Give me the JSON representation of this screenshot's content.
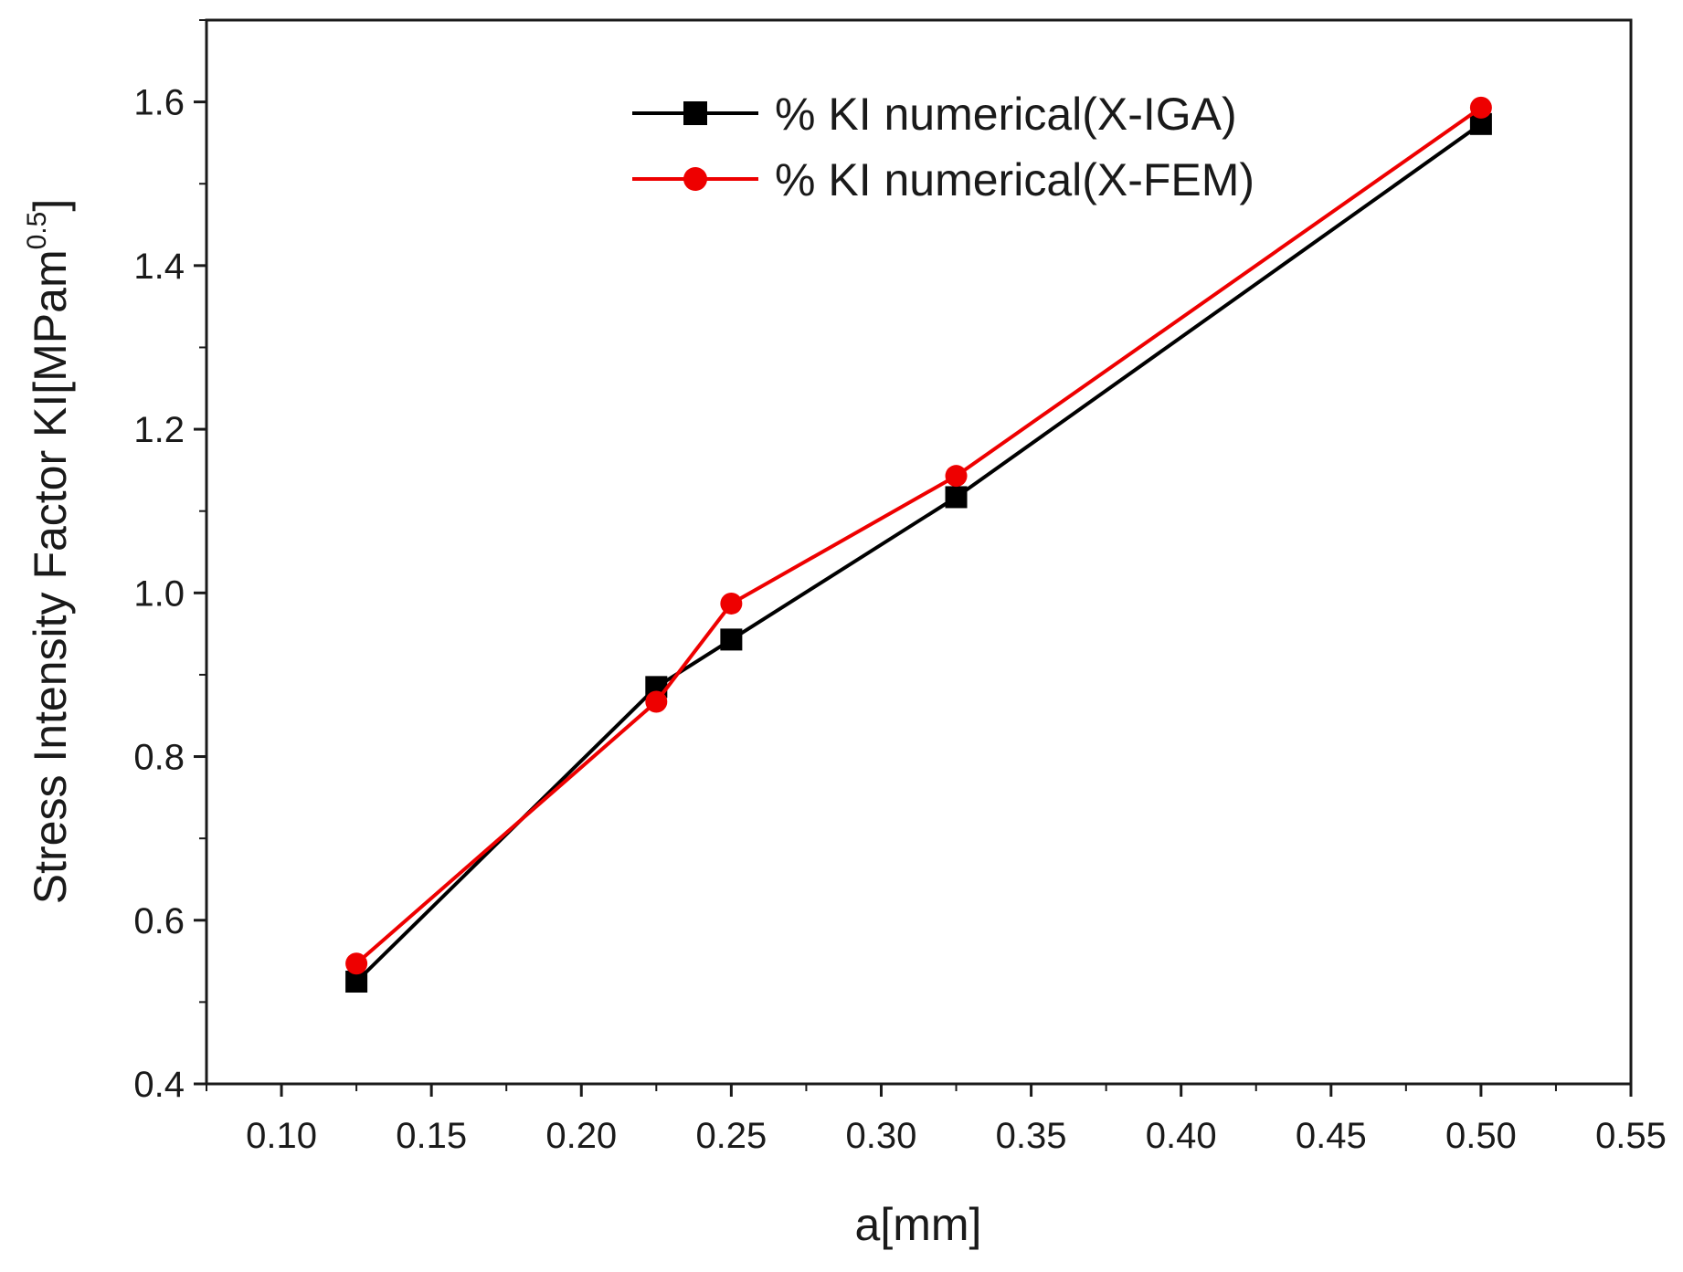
{
  "chart_data": {
    "type": "line",
    "title": "",
    "xlabel": "a[mm]",
    "ylabel": "Stress Intensity Factor KI[MPam",
    "ylabel_superscript": "0.5",
    "ylabel_suffix": "]",
    "xlim": [
      0.075,
      0.55
    ],
    "ylim": [
      0.4,
      1.7
    ],
    "grid": false,
    "legend_position": "top-right",
    "x_ticks": [
      0.1,
      0.15,
      0.2,
      0.25,
      0.3,
      0.35,
      0.4,
      0.45,
      0.5,
      0.55
    ],
    "x_tick_labels": [
      "0.10",
      "0.15",
      "0.20",
      "0.25",
      "0.30",
      "0.35",
      "0.40",
      "0.45",
      "0.50",
      "0.55"
    ],
    "y_ticks": [
      0.4,
      0.6,
      0.8,
      1.0,
      1.2,
      1.4,
      1.6
    ],
    "y_tick_labels": [
      "0.4",
      "0.6",
      "0.8",
      "1.0",
      "1.2",
      "1.4",
      "1.6"
    ],
    "series": [
      {
        "name": "% KI numerical(X-IGA)",
        "color": "#000000",
        "marker": "square",
        "x": [
          0.125,
          0.225,
          0.25,
          0.325,
          0.5
        ],
        "values": [
          0.525,
          0.885,
          0.943,
          1.117,
          1.573
        ]
      },
      {
        "name": "% KI numerical(X-FEM)",
        "color": "#ee0000",
        "marker": "circle",
        "x": [
          0.125,
          0.225,
          0.25,
          0.325,
          0.5
        ],
        "values": [
          0.547,
          0.867,
          0.987,
          1.143,
          1.593
        ]
      }
    ]
  }
}
